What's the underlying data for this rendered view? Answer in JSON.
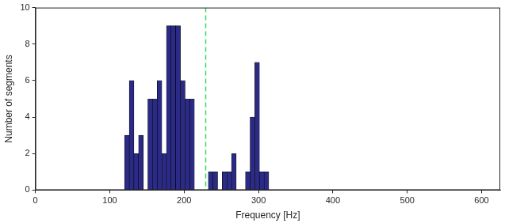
{
  "chart_data": {
    "type": "histogram",
    "x_label": "Frequency [Hz]",
    "y_label": "Number of segments",
    "bins": [
      120,
      126.25,
      132.5,
      138.75,
      145,
      151.25,
      157.5,
      163.75,
      170,
      176.25,
      182.5,
      188.75,
      195,
      201.25,
      207.5,
      213.75,
      220,
      226.25,
      232.5,
      238.75,
      245,
      251.25,
      257.5,
      263.75,
      270,
      276.25,
      282.5,
      288.75,
      295,
      301.25,
      307.5,
      313.75
    ],
    "values": [
      3,
      6,
      2,
      3,
      0,
      5,
      5,
      6,
      2,
      9,
      9,
      9,
      6,
      5,
      5,
      0,
      0,
      0,
      1,
      1,
      0,
      1,
      1,
      2,
      0,
      0,
      1,
      4,
      7,
      1,
      1
    ],
    "color": "#2b2b87",
    "vline": {
      "value": 229,
      "color": "#33dd55",
      "line_style": "dashed"
    },
    "xlim": [
      0,
      625
    ],
    "xticks": [
      0,
      100,
      200,
      300,
      400,
      500,
      600
    ],
    "ylim": [
      0,
      10
    ],
    "yticks": [
      0,
      2,
      4,
      6,
      8,
      10
    ],
    "grid": false
  }
}
